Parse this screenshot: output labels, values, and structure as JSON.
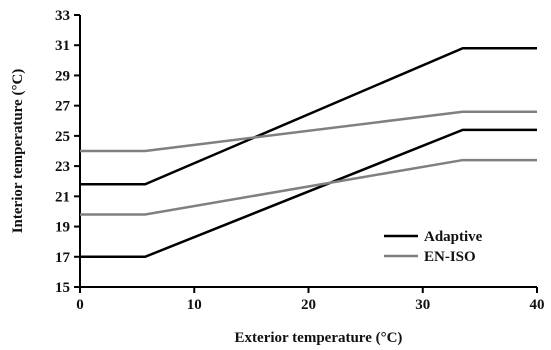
{
  "chart_data": {
    "type": "line",
    "xlabel": "Exterior temperature (°C)",
    "ylabel": "Interior temperature (°C)",
    "xlim": [
      0,
      40
    ],
    "ylim": [
      15,
      33
    ],
    "xticks": [
      0,
      10,
      20,
      30,
      40
    ],
    "yticks": [
      15,
      17,
      19,
      21,
      23,
      25,
      27,
      29,
      31,
      33
    ],
    "grid": false,
    "legend": "lower-right",
    "series": [
      {
        "name": "Adaptive",
        "color": "#000000",
        "x": [
          0,
          5.7,
          33.5,
          40
        ],
        "y": [
          21.8,
          21.8,
          30.8,
          30.8
        ],
        "show_in_legend": true
      },
      {
        "name": "Adaptive",
        "color": "#000000",
        "x": [
          0,
          5.7,
          33.5,
          40
        ],
        "y": [
          17.0,
          17.0,
          25.4,
          25.4
        ],
        "show_in_legend": false
      },
      {
        "name": "EN-ISO",
        "color": "#808080",
        "x": [
          0,
          5.7,
          33.5,
          40
        ],
        "y": [
          24.0,
          24.0,
          26.6,
          26.6
        ],
        "show_in_legend": true
      },
      {
        "name": "EN-ISO",
        "color": "#808080",
        "x": [
          0,
          5.7,
          33.5,
          40
        ],
        "y": [
          19.8,
          19.8,
          23.4,
          23.4
        ],
        "show_in_legend": false
      }
    ]
  }
}
